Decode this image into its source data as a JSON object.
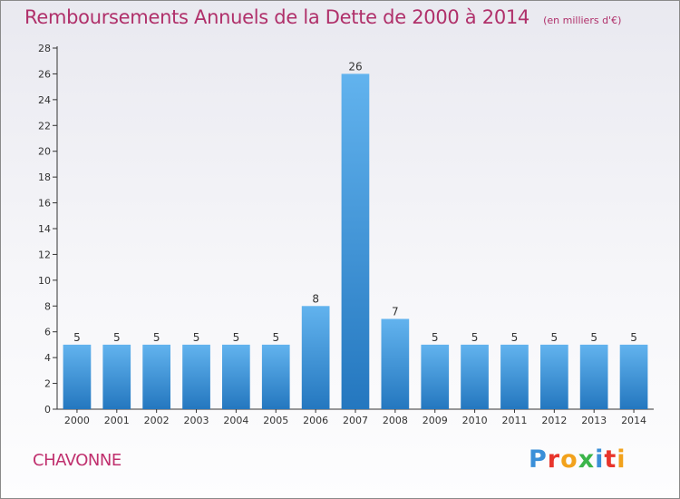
{
  "header": {
    "title": "Remboursements Annuels de la Dette de 2000 à 2014",
    "unit": "(en milliers d'€)"
  },
  "footer": {
    "commune": "CHAVONNE",
    "logo_text": "Proxiti",
    "logo_colors": [
      "#3a8fd8",
      "#e8352c",
      "#f2a21c",
      "#3bb54a",
      "#3a8fd8",
      "#e8352c",
      "#f2a21c"
    ]
  },
  "colors": {
    "bar_light": "#62b3ee",
    "bar_dark": "#2477bf",
    "axis": "#333333",
    "grid": "#d0d0d0"
  },
  "chart_data": {
    "type": "bar",
    "categories": [
      "2000",
      "2001",
      "2002",
      "2003",
      "2004",
      "2005",
      "2006",
      "2007",
      "2008",
      "2009",
      "2010",
      "2011",
      "2012",
      "2013",
      "2014"
    ],
    "values": [
      5,
      5,
      5,
      5,
      5,
      5,
      8,
      26,
      7,
      5,
      5,
      5,
      5,
      5,
      5
    ],
    "data_labels": [
      "5",
      "5",
      "5",
      "5",
      "5",
      "5",
      "8",
      "26",
      "7",
      "5",
      "5",
      "5",
      "5",
      "5",
      "5"
    ],
    "yticks": [
      0,
      2,
      4,
      6,
      8,
      10,
      12,
      14,
      16,
      18,
      20,
      22,
      24,
      26,
      28
    ],
    "ylim": [
      0,
      28
    ],
    "xlabel": "",
    "ylabel": "",
    "grid": false,
    "legend": "none"
  }
}
